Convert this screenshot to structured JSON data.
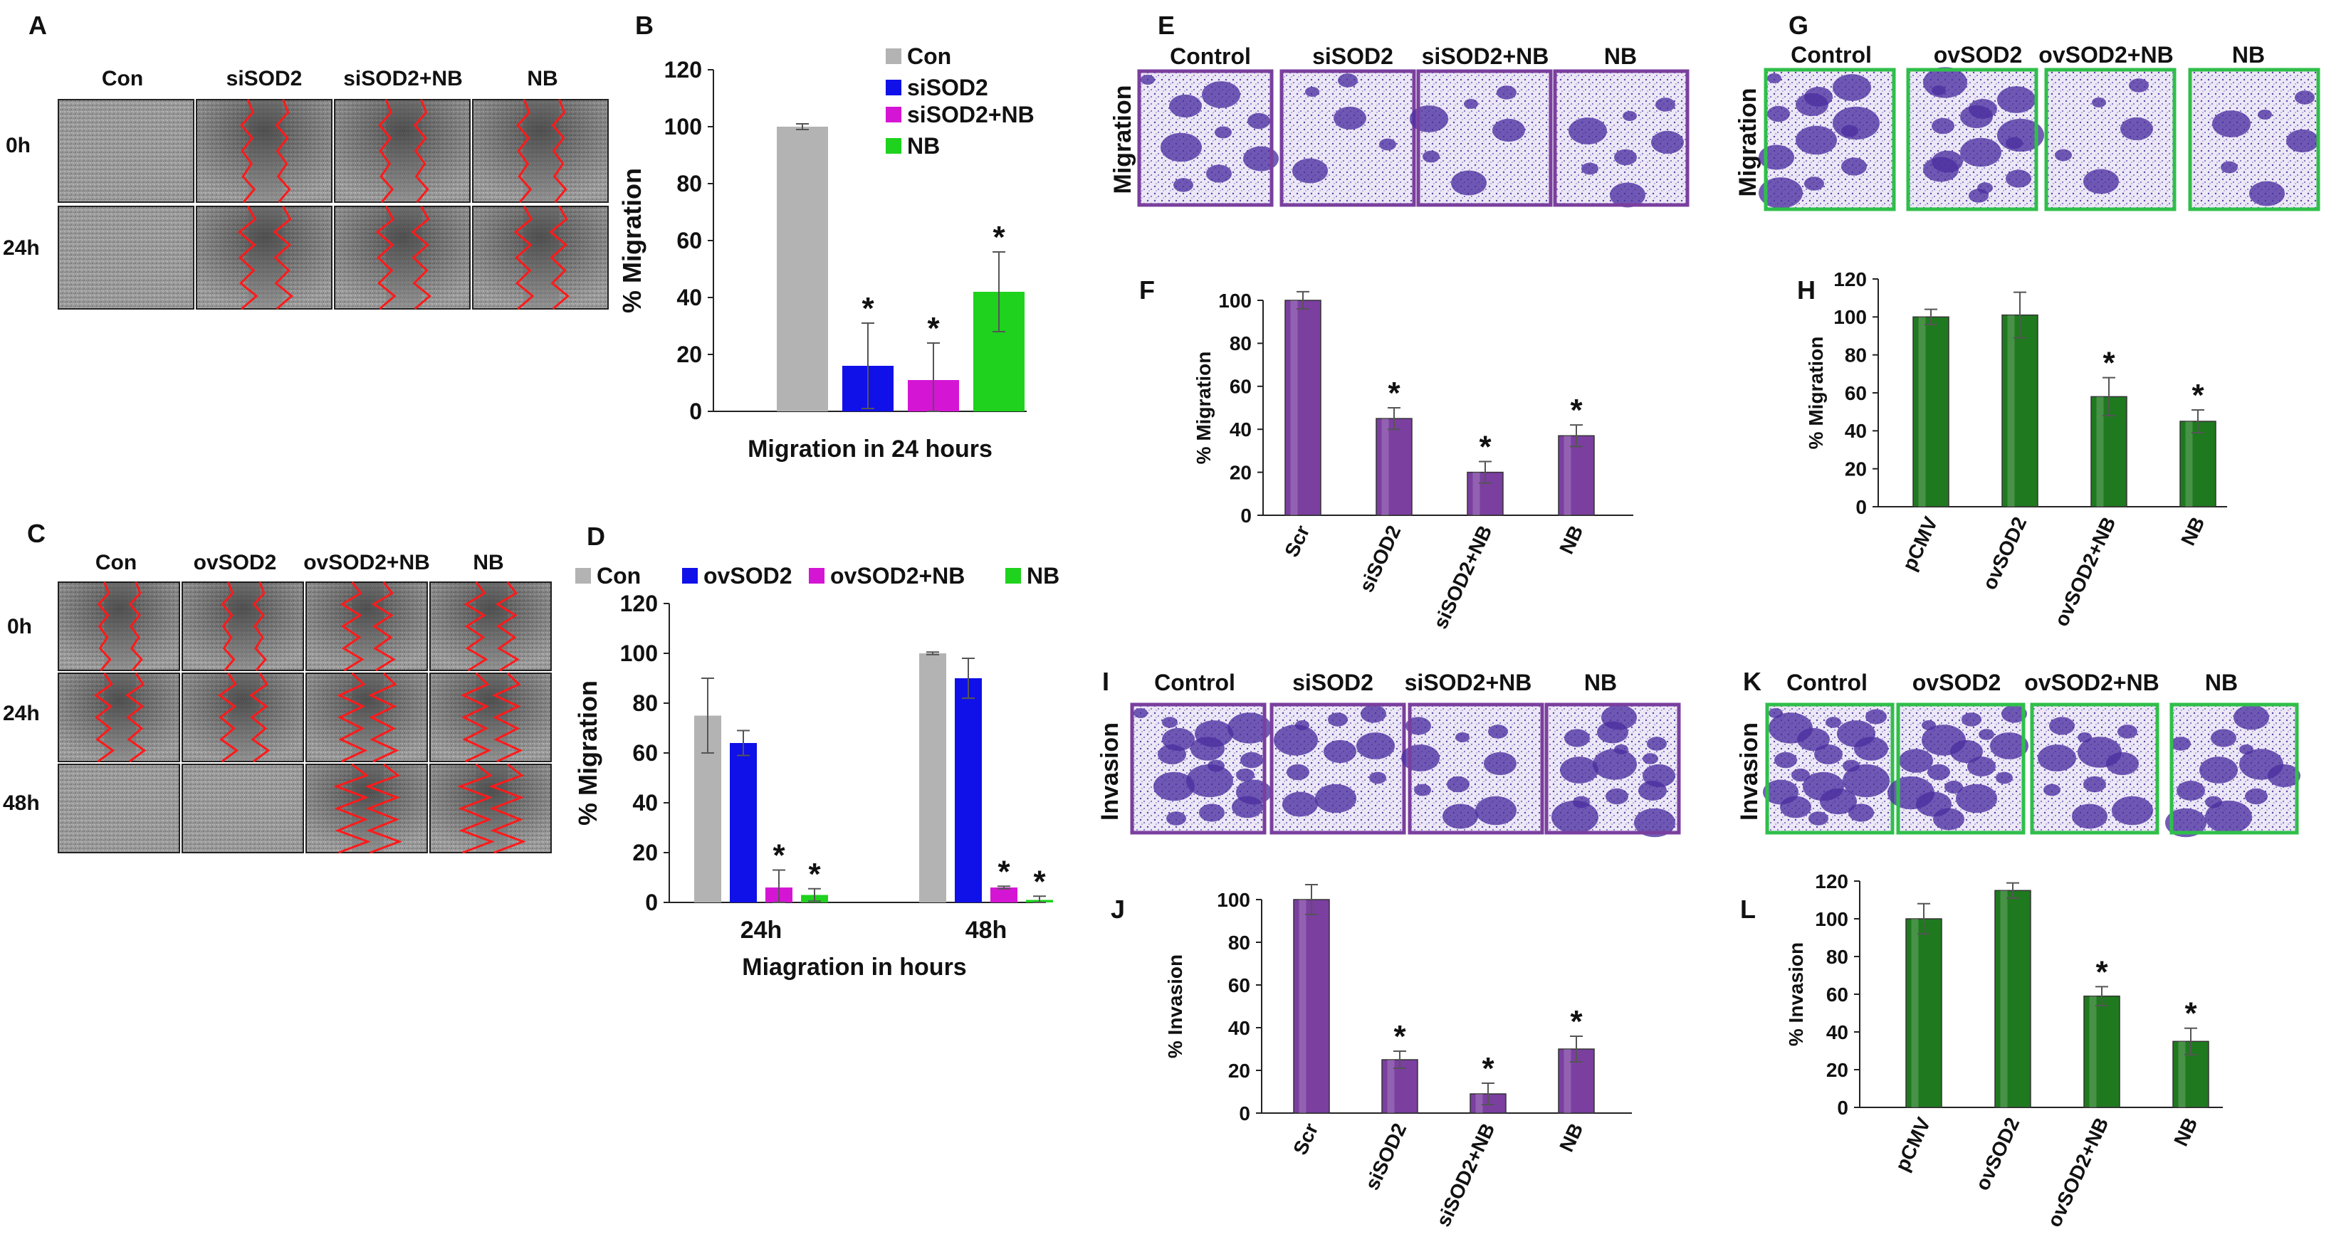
{
  "panels": {
    "A": {
      "letter": "A",
      "columns": [
        "Con",
        "siSOD2",
        "siSOD2+NB",
        "NB"
      ],
      "rows": [
        "0h",
        "24h"
      ]
    },
    "C": {
      "letter": "C",
      "columns": [
        "Con",
        "ovSOD2",
        "ovSOD2+NB",
        "NB"
      ],
      "rows": [
        "0h",
        "24h",
        "48h"
      ]
    },
    "E": {
      "letter": "E",
      "columns": [
        "Control",
        "siSOD2",
        "siSOD2+NB",
        "NB"
      ],
      "row_label": "Migration",
      "border_color": "#7a3f9e"
    },
    "G": {
      "letter": "G",
      "columns": [
        "Control",
        "ovSOD2",
        "ovSOD2+NB",
        "NB"
      ],
      "row_label": "Migration",
      "border_color": "#2fbf4a"
    },
    "I": {
      "letter": "I",
      "columns": [
        "Control",
        "siSOD2",
        "siSOD2+NB",
        "NB"
      ],
      "row_label": "Invasion",
      "border_color": "#7a3f9e"
    },
    "K": {
      "letter": "K",
      "columns": [
        "Control",
        "ovSOD2",
        "ovSOD2+NB",
        "NB"
      ],
      "row_label": "Invasion",
      "border_color": "#2fbf4a"
    }
  },
  "chart_data": [
    {
      "id": "B",
      "type": "bar",
      "title": "B",
      "xlabel": "Migration in 24 hours",
      "ylabel": "% Migration",
      "ylim": [
        0,
        120
      ],
      "yticks": [
        0,
        20,
        40,
        60,
        80,
        100,
        120
      ],
      "legend": "top-right",
      "series": [
        {
          "name": "Con",
          "color": "#b3b3b3",
          "values": [
            100
          ],
          "errors": [
            1
          ],
          "sig": [
            false
          ]
        },
        {
          "name": "siSOD2",
          "color": "#1010e8",
          "values": [
            16
          ],
          "errors": [
            15
          ],
          "sig": [
            true
          ]
        },
        {
          "name": "siSOD2+NB",
          "color": "#d416d4",
          "values": [
            11
          ],
          "errors": [
            13
          ],
          "sig": [
            true
          ]
        },
        {
          "name": "NB",
          "color": "#1ed21e",
          "values": [
            42
          ],
          "errors": [
            14
          ],
          "sig": [
            true
          ]
        }
      ]
    },
    {
      "id": "D",
      "type": "bar",
      "title": "D",
      "categories": [
        "24h",
        "48h"
      ],
      "xlabel": "Miagration in hours",
      "ylabel": "% Migration",
      "ylim": [
        0,
        120
      ],
      "yticks": [
        0,
        20,
        40,
        60,
        80,
        100,
        120
      ],
      "legend": "top",
      "series": [
        {
          "name": "Con",
          "color": "#b3b3b3",
          "values": [
            75,
            100
          ],
          "errors": [
            15,
            0.5
          ],
          "sig": [
            false,
            false
          ]
        },
        {
          "name": "ovSOD2",
          "color": "#1010e8",
          "values": [
            64,
            90
          ],
          "errors": [
            5,
            8
          ],
          "sig": [
            false,
            false
          ]
        },
        {
          "name": "ovSOD2+NB",
          "color": "#d416d4",
          "values": [
            6,
            6
          ],
          "errors": [
            7,
            0.5
          ],
          "sig": [
            true,
            true
          ]
        },
        {
          "name": "NB",
          "color": "#1ed21e",
          "values": [
            3,
            1
          ],
          "errors": [
            2.5,
            1.5
          ],
          "sig": [
            true,
            true
          ]
        }
      ]
    },
    {
      "id": "F",
      "type": "bar",
      "title": "F",
      "categories": [
        "Scr",
        "siSOD2",
        "siSOD2+NB",
        "NB"
      ],
      "xlabel": "",
      "ylabel": "% Migration",
      "ylim": [
        0,
        100
      ],
      "yticks": [
        0,
        20,
        40,
        60,
        80,
        100
      ],
      "color": "#7b3fa0",
      "values": [
        100,
        45,
        20,
        37
      ],
      "errors": [
        4,
        5,
        5,
        5
      ],
      "sig": [
        false,
        true,
        true,
        true
      ]
    },
    {
      "id": "H",
      "type": "bar",
      "title": "H",
      "categories": [
        "pCMV",
        "ovSOD2",
        "ovSOD2+NB",
        "NB"
      ],
      "xlabel": "",
      "ylabel": "% Migration",
      "ylim": [
        0,
        120
      ],
      "yticks": [
        0,
        20,
        40,
        60,
        80,
        100,
        120
      ],
      "color": "#1f7a1f",
      "values": [
        100,
        101,
        58,
        45
      ],
      "errors": [
        4,
        12,
        10,
        6
      ],
      "sig": [
        false,
        false,
        true,
        true
      ]
    },
    {
      "id": "J",
      "type": "bar",
      "title": "J",
      "categories": [
        "Scr",
        "siSOD2",
        "siSOD2+NB",
        "NB"
      ],
      "xlabel": "",
      "ylabel": "% Invasion",
      "ylim": [
        0,
        100
      ],
      "yticks": [
        0,
        20,
        40,
        60,
        80,
        100
      ],
      "color": "#7b3fa0",
      "values": [
        100,
        25,
        9,
        30
      ],
      "errors": [
        7,
        4,
        5,
        6
      ],
      "sig": [
        false,
        true,
        true,
        true
      ]
    },
    {
      "id": "L",
      "type": "bar",
      "title": "L",
      "categories": [
        "pCMV",
        "ovSOD2",
        "ovSOD2+NB",
        "NB"
      ],
      "xlabel": "",
      "ylabel": "% Invasion",
      "ylim": [
        0,
        120
      ],
      "yticks": [
        0,
        20,
        40,
        60,
        80,
        100,
        120
      ],
      "color": "#1f7a1f",
      "values": [
        100,
        115,
        59,
        35
      ],
      "errors": [
        8,
        4,
        5,
        7
      ],
      "sig": [
        false,
        false,
        true,
        true
      ]
    }
  ]
}
